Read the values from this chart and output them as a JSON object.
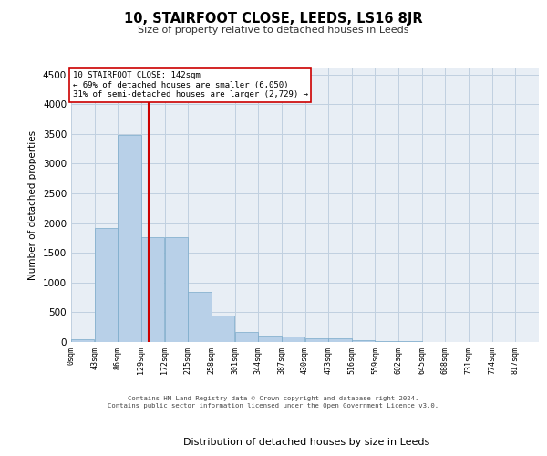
{
  "title": "10, STAIRFOOT CLOSE, LEEDS, LS16 8JR",
  "subtitle": "Size of property relative to detached houses in Leeds",
  "xlabel": "Distribution of detached houses by size in Leeds",
  "ylabel": "Number of detached properties",
  "bar_color": "#b8d0e8",
  "bar_edge_color": "#7aaaca",
  "grid_color": "#c0d0e0",
  "background_color": "#e8eef5",
  "vline_x": 142,
  "vline_color": "#cc0000",
  "annotation_text": "10 STAIRFOOT CLOSE: 142sqm\n← 69% of detached houses are smaller (6,050)\n31% of semi-detached houses are larger (2,729) →",
  "annotation_box_facecolor": "#ffffff",
  "annotation_box_edgecolor": "#cc0000",
  "bin_edges": [
    0,
    43,
    86,
    129,
    172,
    215,
    258,
    301,
    344,
    387,
    430,
    473,
    516,
    559,
    602,
    645,
    688,
    731,
    774,
    817,
    860
  ],
  "bar_heights": [
    50,
    1920,
    3480,
    1760,
    1760,
    840,
    450,
    170,
    100,
    90,
    60,
    55,
    35,
    18,
    10,
    7,
    5,
    3,
    2,
    1
  ],
  "ylim": [
    0,
    4600
  ],
  "yticks": [
    0,
    500,
    1000,
    1500,
    2000,
    2500,
    3000,
    3500,
    4000,
    4500
  ],
  "footer_line1": "Contains HM Land Registry data © Crown copyright and database right 2024.",
  "footer_line2": "Contains public sector information licensed under the Open Government Licence v3.0."
}
